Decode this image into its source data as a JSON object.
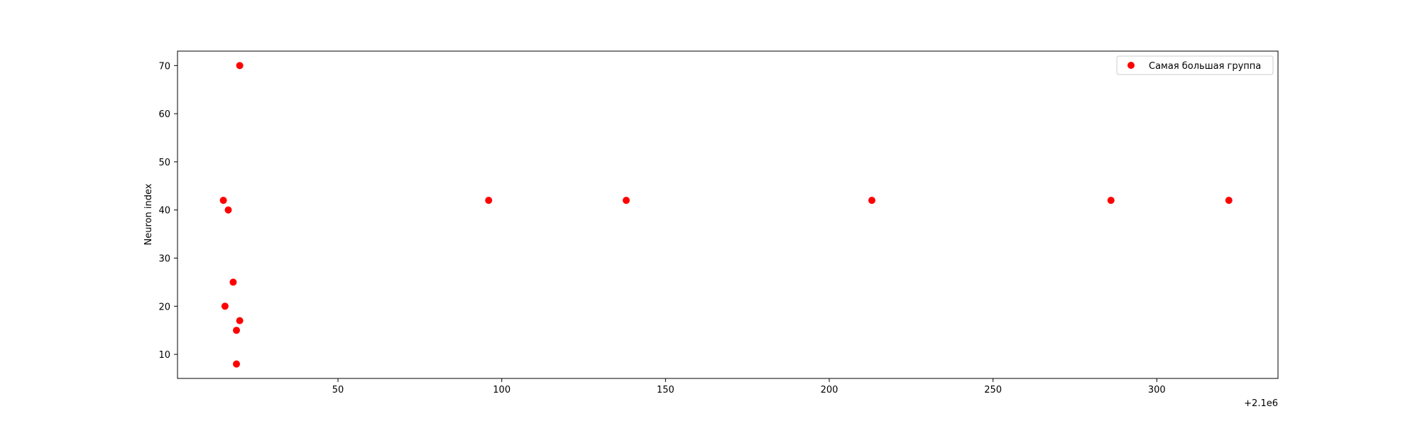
{
  "chart_data": {
    "type": "scatter",
    "title": "",
    "xlabel": "",
    "ylabel": "Neuron index",
    "x_offset_label": "+2.1e6",
    "xlim": [
      1,
      337
    ],
    "ylim": [
      5,
      73
    ],
    "xticks": [
      50,
      100,
      150,
      200,
      250,
      300
    ],
    "yticks": [
      10,
      20,
      30,
      40,
      50,
      60,
      70
    ],
    "grid": false,
    "legend_position": "top-right",
    "series": [
      {
        "name": "Самая большая группа",
        "color": "#ff0000",
        "points": [
          {
            "x": 20,
            "y": 70
          },
          {
            "x": 15,
            "y": 42
          },
          {
            "x": 16.5,
            "y": 40
          },
          {
            "x": 18,
            "y": 25
          },
          {
            "x": 15.5,
            "y": 20
          },
          {
            "x": 20,
            "y": 17
          },
          {
            "x": 19,
            "y": 15
          },
          {
            "x": 19,
            "y": 8
          },
          {
            "x": 96,
            "y": 42
          },
          {
            "x": 138,
            "y": 42
          },
          {
            "x": 213,
            "y": 42
          },
          {
            "x": 286,
            "y": 42
          },
          {
            "x": 322,
            "y": 42
          }
        ]
      }
    ]
  }
}
